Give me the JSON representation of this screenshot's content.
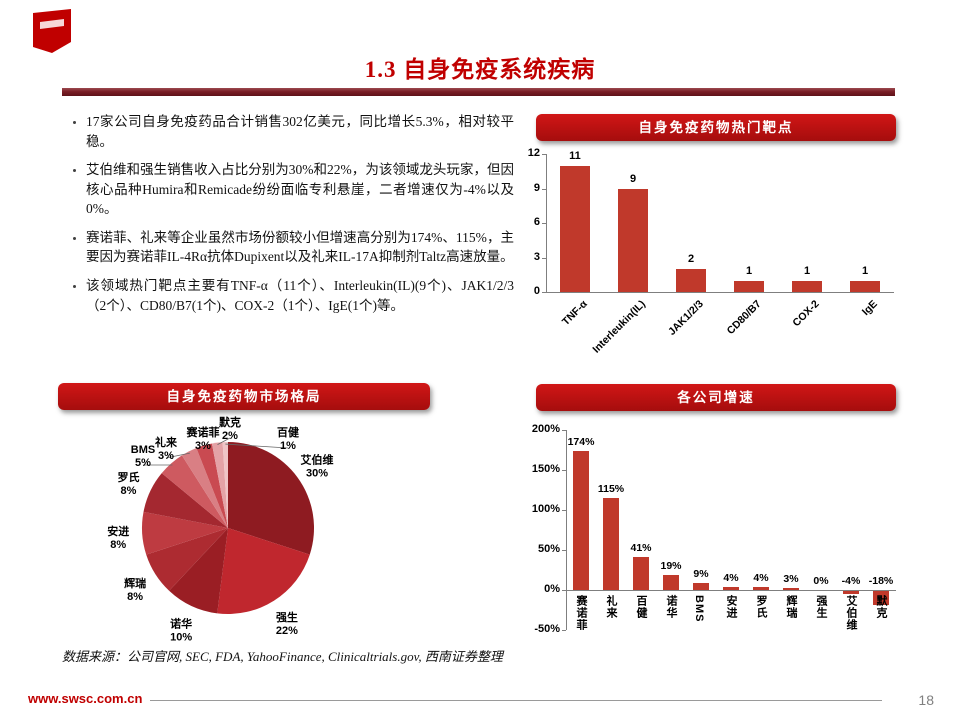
{
  "slide": {
    "title": "1.3 自身免疫系统疾病",
    "page_number": "18",
    "source": "数据来源：公司官网, SEC, FDA, YahooFinance, Clinicaltrials.gov, 西南证券整理",
    "website": "www.swsc.com.cn",
    "accent_color": "#C00000"
  },
  "bullets": [
    "17家公司自身免疫药品合计销售302亿美元，同比增长5.3%，相对较平稳。",
    "艾伯维和强生销售收入占比分别为30%和22%，为该领域龙头玩家，但因核心品种Humira和Remicade纷纷面临专利悬崖，二者增速仅为-4%以及0%。",
    "赛诺菲、礼来等企业虽然市场份额较小但增速高分别为174%、115%，主要因为赛诺菲IL-4Rα抗体Dupixent以及礼来IL-17A抑制剂Taltz高速放量。",
    "该领域热门靶点主要有TNF-α（11个）、Interleukin(IL)(9个)、JAK1/2/3（2个）、CD80/B7(1个)、COX-2（1个）、IgE(1个)等。"
  ],
  "chart_data": [
    {
      "type": "bar",
      "title": "自身免疫药物热门靶点",
      "categories": [
        "TNF-α",
        "Interleukin(IL)",
        "JAK1/2/3",
        "CD80/B7",
        "COX-2",
        "IgE"
      ],
      "values": [
        11,
        9,
        2,
        1,
        1,
        1
      ],
      "ylim": [
        0,
        12
      ],
      "yticks": [
        0,
        3,
        6,
        9,
        12
      ],
      "bar_color": "#C0392B",
      "grid": false,
      "legend": "none"
    },
    {
      "type": "pie",
      "title": "自身免疫药物市场格局",
      "categories": [
        "艾伯维",
        "强生",
        "诺华",
        "辉瑞",
        "安进",
        "罗氏",
        "BMS",
        "礼来",
        "赛诺菲",
        "默克",
        "百健"
      ],
      "values": [
        30,
        22,
        10,
        8,
        8,
        8,
        5,
        3,
        3,
        2,
        1
      ],
      "labels": [
        "30%",
        "22%",
        "10%",
        "8%",
        "8%",
        "8%",
        "5%",
        "3%",
        "3%",
        "2%",
        "1%"
      ],
      "colors": [
        "#8E1B21",
        "#C0272E",
        "#9A1E24",
        "#AD2B31",
        "#BE3B41",
        "#A42830",
        "#CE5A60",
        "#D97F84",
        "#C94A51",
        "#E4A2A6",
        "#F0C4C6"
      ],
      "start_angle": 0,
      "direction": "clockwise"
    },
    {
      "type": "bar",
      "title": "各公司增速",
      "categories": [
        "赛诺菲",
        "礼来",
        "百健",
        "诺华",
        "BMS",
        "安进",
        "罗氏",
        "辉瑞",
        "强生",
        "艾伯维",
        "默克"
      ],
      "values": [
        174,
        115,
        41,
        19,
        9,
        4,
        4,
        3,
        0,
        -4,
        -18
      ],
      "labels": [
        "174%",
        "115%",
        "41%",
        "19%",
        "9%",
        "4%",
        "4%",
        "3%",
        "0%",
        "-4%",
        "-18%"
      ],
      "ylim": [
        -50,
        200
      ],
      "yticks": [
        "-50%",
        "0%",
        "50%",
        "100%",
        "150%",
        "200%"
      ],
      "bar_color": "#C0392B",
      "grid": false,
      "legend": "none"
    }
  ]
}
